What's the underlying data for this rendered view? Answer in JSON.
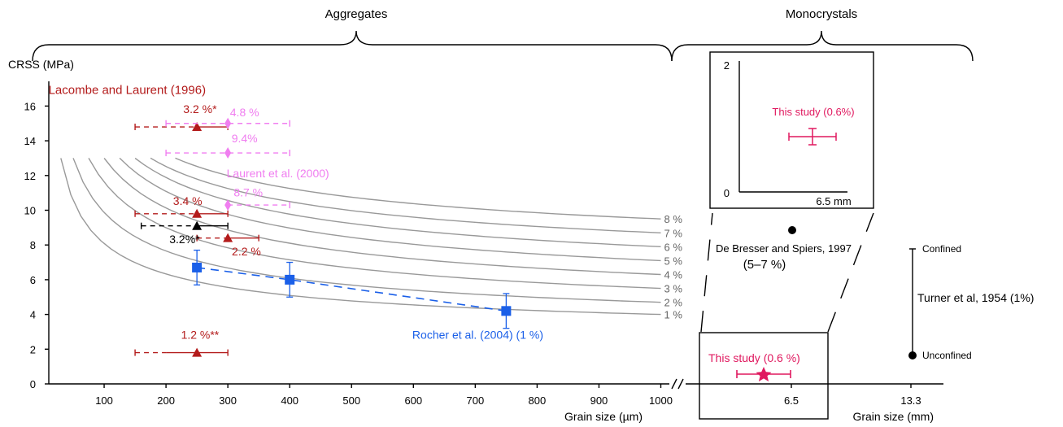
{
  "header": {
    "aggregates": "Aggregates",
    "monocrystals": "Monocrystals"
  },
  "chart_data": [
    {
      "type": "scatter",
      "panel": "aggregates",
      "ylabel": "CRSS (MPa)",
      "xlabel": "Grain size (µm)",
      "xticks": [
        100,
        200,
        300,
        400,
        500,
        600,
        700,
        800,
        900,
        1000
      ],
      "yticks": [
        0,
        2,
        4,
        6,
        8,
        10,
        12,
        14,
        16
      ],
      "xlim": [
        0,
        1040
      ],
      "ylim": [
        0,
        17.5
      ],
      "grid": false,
      "colors": {
        "lacombe": "#b31b1b",
        "laurent": "#f07ef0",
        "rocher": "#1a5fe8",
        "curves": "#999999",
        "black": "#000000"
      },
      "strain_curves": {
        "labels": [
          "1 %",
          "2 %",
          "3 %",
          "4 %",
          "5 %",
          "6 %",
          "7 %",
          "8 %"
        ],
        "starts": [
          [
            30,
            13
          ],
          [
            50,
            13
          ],
          [
            75,
            13
          ],
          [
            100,
            13
          ],
          [
            125,
            13
          ],
          [
            150,
            13
          ],
          [
            175,
            13
          ],
          [
            215,
            13
          ]
        ],
        "ends": [
          [
            1000,
            4.0
          ],
          [
            1000,
            4.7
          ],
          [
            1000,
            5.5
          ],
          [
            1000,
            6.3
          ],
          [
            1000,
            7.1
          ],
          [
            1000,
            7.9
          ],
          [
            1000,
            8.7
          ],
          [
            1000,
            9.5
          ]
        ]
      },
      "series": [
        {
          "name": "Lacombe and Laurent (1996)",
          "marker": "triangle",
          "points": [
            {
              "x": 250,
              "y": 14.8,
              "label": "3.2 %*",
              "xerr_solid": [
                250,
                300
              ],
              "xerr_dashed": [
                150,
                250
              ]
            },
            {
              "x": 250,
              "y": 9.8,
              "label": "3.4 %",
              "xerr_solid": [
                250,
                300
              ],
              "xerr_dashed": [
                150,
                250
              ]
            },
            {
              "x": 300,
              "y": 8.4,
              "label": "2.2 %",
              "xerr_solid": [
                300,
                350
              ],
              "xerr_dashed": [
                250,
                300
              ]
            },
            {
              "x": 250,
              "y": 1.8,
              "label": "1.2 %**",
              "xerr_solid": [
                200,
                300
              ],
              "xerr_dashed": [
                150,
                200
              ]
            }
          ]
        },
        {
          "name": "",
          "marker": "triangle-black",
          "points": [
            {
              "x": 250,
              "y": 9.1,
              "label": "3.2%*",
              "xerr_solid": [
                250,
                300
              ],
              "xerr_dashed": [
                160,
                250
              ]
            }
          ]
        },
        {
          "name": "Laurent et al. (2000)",
          "marker": "diamond",
          "points": [
            {
              "x": 300,
              "y": 15.0,
              "label": "4.8 %",
              "xerr_dashed": [
                200,
                400
              ]
            },
            {
              "x": 300,
              "y": 13.3,
              "label": "9.4%",
              "xerr_dashed": [
                200,
                400
              ]
            },
            {
              "x": 300,
              "y": 10.3,
              "label": "8.7 %",
              "xerr_dashed": [
                300,
                400
              ]
            }
          ]
        },
        {
          "name": "Rocher et al. (2004) (1 %)",
          "marker": "square",
          "points": [
            {
              "x": 250,
              "y": 6.7,
              "yerr": [
                5.7,
                7.7
              ]
            },
            {
              "x": 400,
              "y": 6.0,
              "yerr": [
                5.0,
                7.0
              ]
            },
            {
              "x": 750,
              "y": 4.2,
              "yerr": [
                3.2,
                5.2
              ]
            }
          ]
        }
      ]
    },
    {
      "type": "scatter",
      "panel": "monocrystals",
      "xlabel": "Grain size (mm)",
      "xticks": [
        "6.5",
        "13.3"
      ],
      "points": [
        {
          "name": "This study (0.6 %)",
          "x": 6.5,
          "y": 0.45,
          "marker": "star",
          "color": "#e0195f"
        }
      ],
      "de_bresser": {
        "label": "De Bresser and Spiers, 1997",
        "range": "(5–7 %)",
        "y": 8.6
      },
      "turner": {
        "label": "Turner et al, 1954 (1%)",
        "x": 13.3,
        "y_confined": 8.0,
        "y_unconfined": 1.6,
        "confined": "Confined",
        "unconfined": "Unconfined"
      }
    },
    {
      "type": "scatter",
      "panel": "inset",
      "yticks": [
        "0",
        "2"
      ],
      "xticks": [
        "6.5 mm"
      ],
      "ylim": [
        0,
        2
      ],
      "points": [
        {
          "name": "This study (0.6%)",
          "x": 6.5,
          "y": 0.9,
          "xerr": [
            5.5,
            7.5
          ],
          "yerr": [
            0.8,
            1.0
          ],
          "color": "#e0195f"
        }
      ]
    }
  ]
}
